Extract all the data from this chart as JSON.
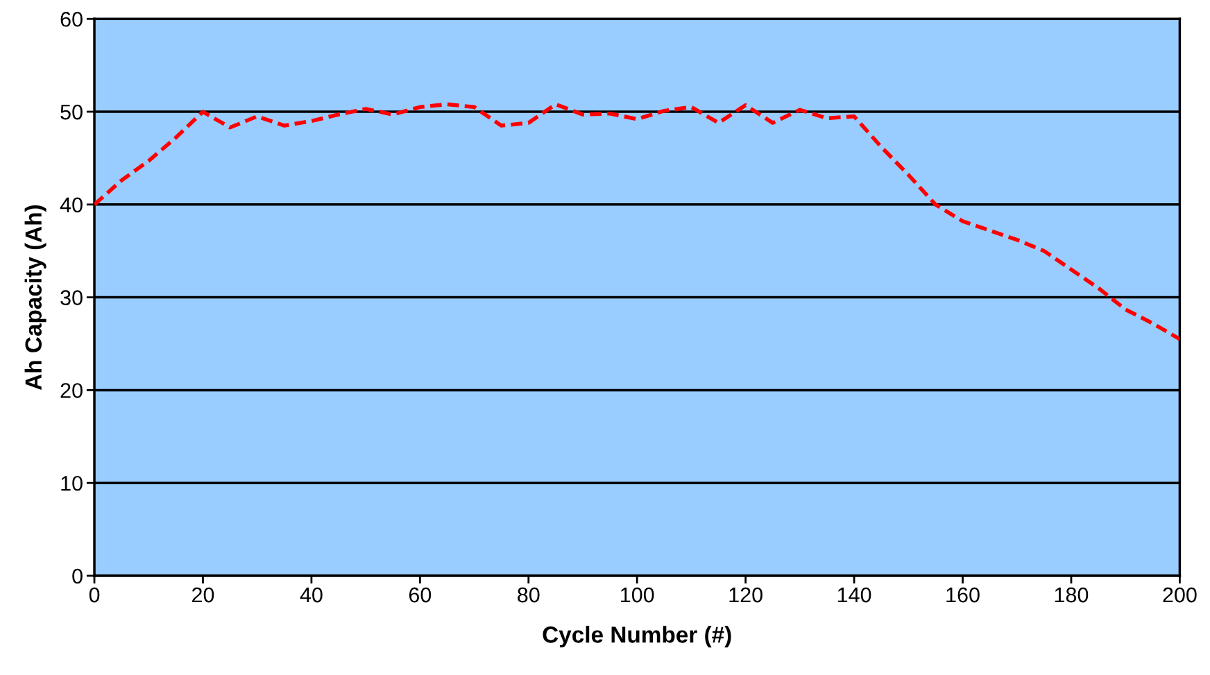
{
  "chart_data": {
    "type": "line",
    "xlabel": "Cycle Number (#)",
    "ylabel": "Ah Capacity (Ah)",
    "x": [
      0,
      5,
      10,
      15,
      20,
      25,
      30,
      35,
      40,
      45,
      50,
      55,
      60,
      65,
      70,
      75,
      80,
      85,
      90,
      95,
      100,
      105,
      110,
      115,
      120,
      125,
      130,
      135,
      140,
      145,
      150,
      155,
      160,
      165,
      170,
      175,
      180,
      185,
      190,
      195,
      200
    ],
    "series": [
      {
        "color": "#ff0000",
        "values": [
          40,
          42.6,
          44.7,
          47.2,
          50,
          48.3,
          49.5,
          48.5,
          49,
          49.7,
          50.3,
          49.7,
          50.5,
          50.8,
          50.5,
          48.5,
          48.8,
          50.8,
          49.7,
          49.8,
          49.2,
          50.1,
          50.5,
          48.8,
          50.7,
          48.8,
          50.2,
          49.3,
          49.5,
          46.2,
          43.2,
          40,
          38.2,
          37.2,
          36.2,
          35,
          33,
          31,
          28.7,
          27.2,
          25.5
        ]
      }
    ],
    "xlim": [
      0,
      200
    ],
    "xticks": [
      0,
      20,
      40,
      60,
      80,
      100,
      120,
      140,
      160,
      180,
      200
    ],
    "ylim": [
      0,
      60
    ],
    "yticks": [
      0,
      10,
      20,
      30,
      40,
      50,
      60
    ],
    "grid": "y",
    "legend": false,
    "marker": "none",
    "line_style": "dashed"
  }
}
